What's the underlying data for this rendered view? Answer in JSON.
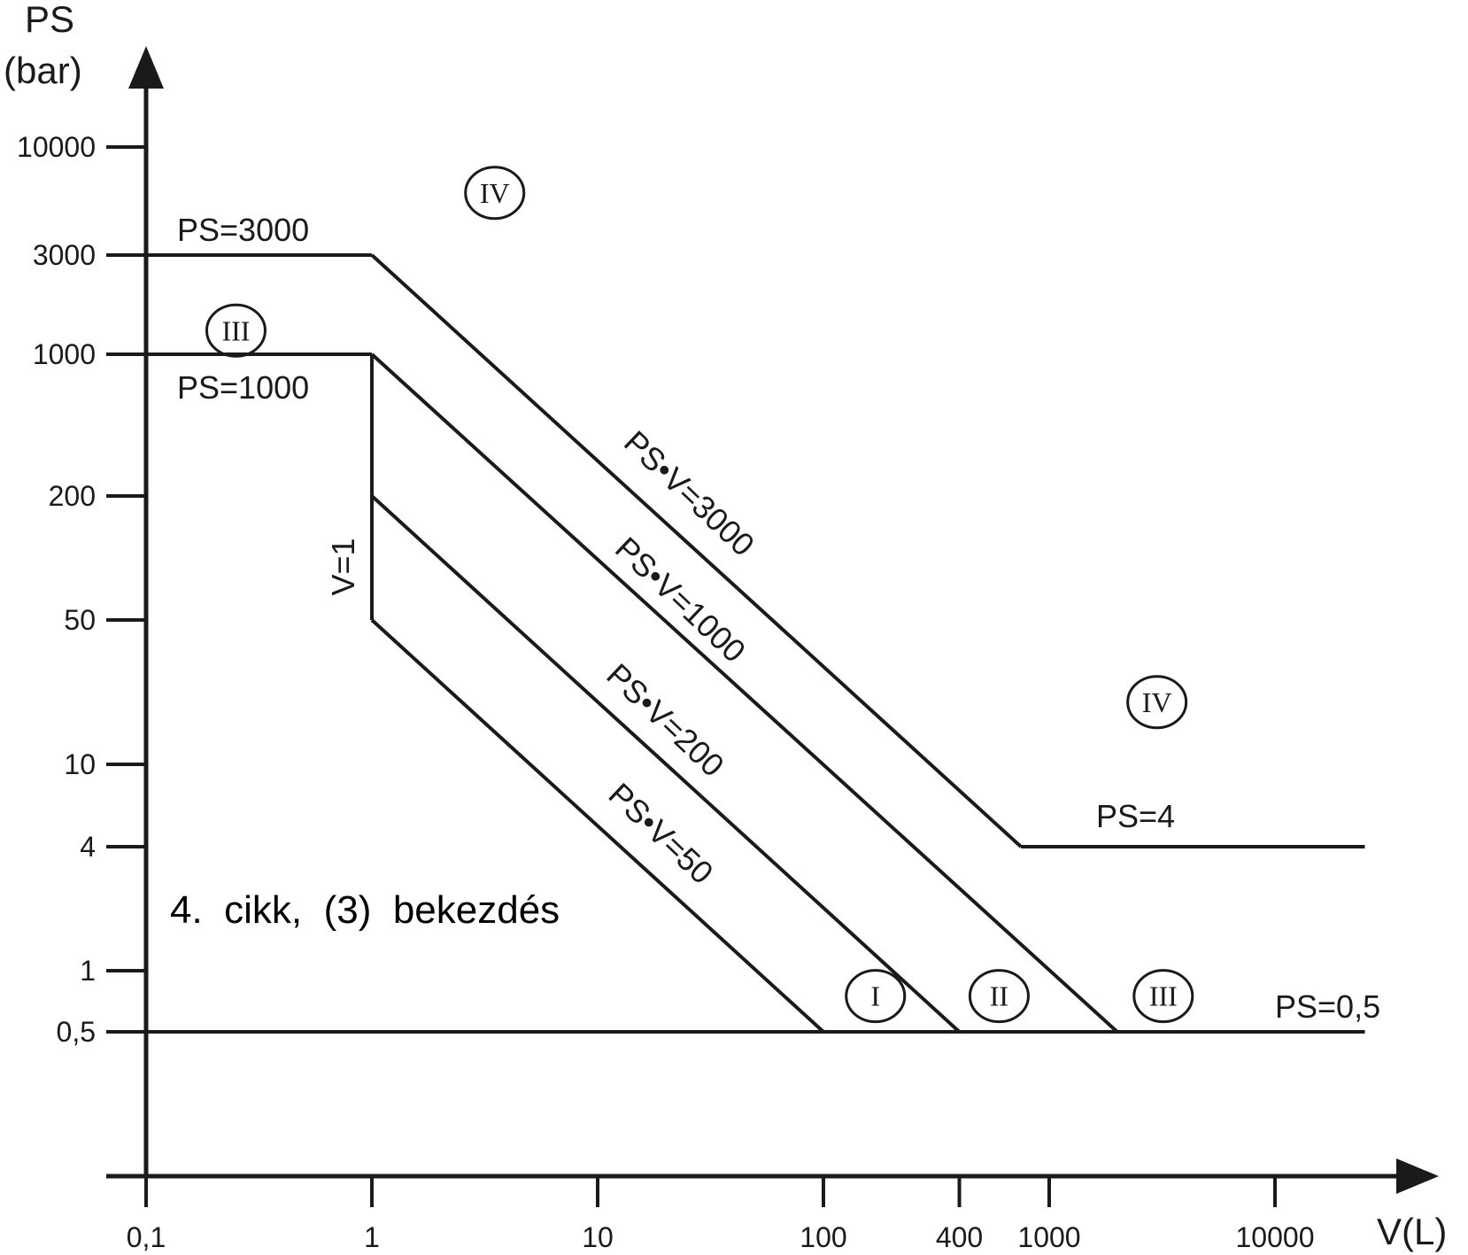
{
  "chart_data": {
    "type": "line",
    "xscale": "log",
    "yscale": "log",
    "xlabel": "V(L)",
    "ylabel_line1": "PS",
    "ylabel_line2": "(bar)",
    "x_ticks": [
      {
        "value": 0.1,
        "label": "0,1"
      },
      {
        "value": 1,
        "label": "1"
      },
      {
        "value": 10,
        "label": "10"
      },
      {
        "value": 100,
        "label": "100"
      },
      {
        "value": 400,
        "label": "400"
      },
      {
        "value": 1000,
        "label": "1000"
      },
      {
        "value": 10000,
        "label": "10000"
      }
    ],
    "y_ticks": [
      {
        "value": 0.5,
        "label": "0,5"
      },
      {
        "value": 1,
        "label": "1"
      },
      {
        "value": 4,
        "label": "4"
      },
      {
        "value": 10,
        "label": "10"
      },
      {
        "value": 50,
        "label": "50"
      },
      {
        "value": 200,
        "label": "200"
      },
      {
        "value": 1000,
        "label": "1000"
      },
      {
        "value": 3000,
        "label": "3000"
      },
      {
        "value": 10000,
        "label": "10000"
      }
    ],
    "series": [
      {
        "name": "PS=3000",
        "points": [
          [
            0.1,
            3000
          ],
          [
            1,
            3000
          ]
        ]
      },
      {
        "name": "PS•V=3000",
        "points": [
          [
            1,
            3000
          ],
          [
            750,
            4
          ]
        ]
      },
      {
        "name": "PS=4",
        "points": [
          [
            750,
            4
          ],
          [
            25000,
            4
          ]
        ]
      },
      {
        "name": "PS=1000",
        "points": [
          [
            0.1,
            1000
          ],
          [
            1,
            1000
          ]
        ]
      },
      {
        "name": "PS•V=1000",
        "points": [
          [
            1,
            1000
          ],
          [
            2000,
            0.5
          ]
        ]
      },
      {
        "name": "V=1",
        "points": [
          [
            1,
            1000
          ],
          [
            1,
            50
          ]
        ]
      },
      {
        "name": "PS•V=200",
        "points": [
          [
            1,
            200
          ],
          [
            400,
            0.5
          ]
        ]
      },
      {
        "name": "PS•V=50",
        "points": [
          [
            1,
            50
          ],
          [
            100,
            0.5
          ]
        ]
      },
      {
        "name": "PS=0,5",
        "points": [
          [
            0.1,
            0.5
          ],
          [
            25000,
            0.5
          ]
        ]
      }
    ],
    "category_labels": [
      {
        "text": "IV",
        "x": 3.5,
        "y": 6000
      },
      {
        "text": "III",
        "x": 0.25,
        "y": 1300
      },
      {
        "text": "IV",
        "x": 3000,
        "y": 20
      },
      {
        "text": "I",
        "x": 170,
        "y": 0.75
      },
      {
        "text": "II",
        "x": 600,
        "y": 0.75
      },
      {
        "text": "III",
        "x": 3200,
        "y": 0.75
      }
    ],
    "annotation": "4.  cikk,  (3)  bekezdés"
  }
}
